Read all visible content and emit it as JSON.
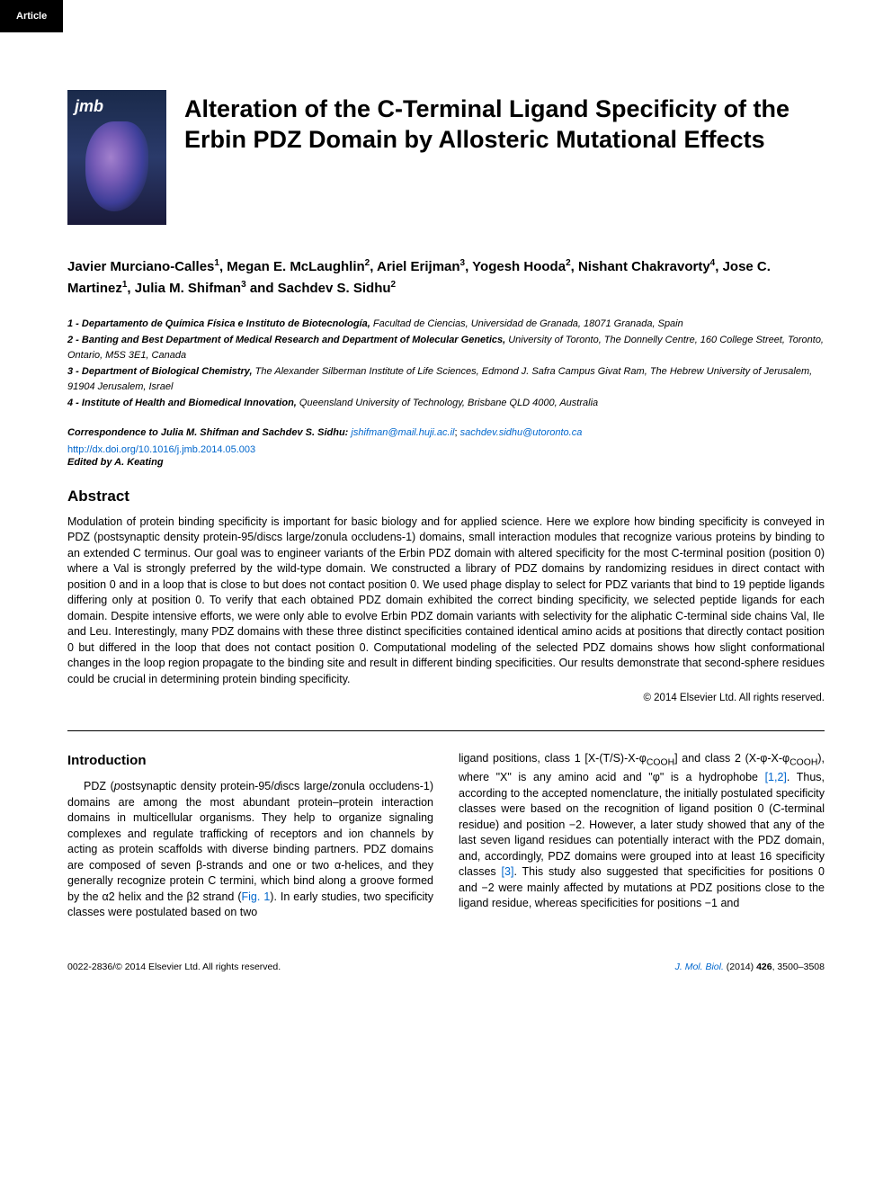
{
  "badge": "Article",
  "journal_thumb": {
    "label": "jmb"
  },
  "title": "Alteration of the C-Terminal Ligand Specificity of the Erbin PDZ Domain by Allosteric Mutational Effects",
  "authors_html": "Javier Murciano-Calles<sup>1</sup>, Megan E. McLaughlin<sup>2</sup>, Ariel Erijman<sup>3</sup>, Yogesh Hooda<sup>2</sup>, Nishant Chakravorty<sup>4</sup>, Jose C. Martinez<sup>1</sup>, Julia M. Shifman<sup>3</sup> and Sachdev S. Sidhu<sup>2</sup>",
  "affiliations": [
    {
      "prefix": "1 - Departamento de Química Física e Instituto de Biotecnología,",
      "rest": " Facultad de Ciencias, Universidad de Granada, 18071 Granada, Spain"
    },
    {
      "prefix": "2 - Banting and Best Department of Medical Research and Department of Molecular Genetics,",
      "rest": " University of Toronto, The Donnelly Centre, 160 College Street, Toronto, Ontario, M5S 3E1, Canada"
    },
    {
      "prefix": "3 - Department of Biological Chemistry,",
      "rest": " The Alexander Silberman Institute of Life Sciences, Edmond J. Safra Campus Givat Ram, The Hebrew University of Jerusalem, 91904 Jerusalem, Israel"
    },
    {
      "prefix": "4 - Institute of Health and Biomedical Innovation,",
      "rest": " Queensland University of Technology, Brisbane QLD 4000, Australia"
    }
  ],
  "correspondence": {
    "label": "Correspondence to Julia M. Shifman and Sachdev S. Sidhu:",
    "emails": [
      "jshifman@mail.huji.ac.il",
      "sachdev.sidhu@utoronto.ca"
    ]
  },
  "doi": "http://dx.doi.org/10.1016/j.jmb.2014.05.003",
  "edited_by": "Edited by A. Keating",
  "abstract": {
    "heading": "Abstract",
    "text": "Modulation of protein binding specificity is important for basic biology and for applied science. Here we explore how binding specificity is conveyed in PDZ (postsynaptic density protein-95/discs large/zonula occludens-1) domains, small interaction modules that recognize various proteins by binding to an extended C terminus. Our goal was to engineer variants of the Erbin PDZ domain with altered specificity for the most C-terminal position (position 0) where a Val is strongly preferred by the wild-type domain. We constructed a library of PDZ domains by randomizing residues in direct contact with position 0 and in a loop that is close to but does not contact position 0. We used phage display to select for PDZ variants that bind to 19 peptide ligands differing only at position 0. To verify that each obtained PDZ domain exhibited the correct binding specificity, we selected peptide ligands for each domain. Despite intensive efforts, we were only able to evolve Erbin PDZ domain variants with selectivity for the aliphatic C-terminal side chains Val, Ile and Leu. Interestingly, many PDZ domains with these three distinct specificities contained identical amino acids at positions that directly contact position 0 but differed in the loop that does not contact position 0. Computational modeling of the selected PDZ domains shows how slight conformational changes in the loop region propagate to the binding site and result in different binding specificities. Our results demonstrate that second-sphere residues could be crucial in determining protein binding specificity.",
    "copyright": "© 2014 Elsevier Ltd. All rights reserved."
  },
  "introduction": {
    "heading": "Introduction",
    "col1": "PDZ (<i>p</i>ostsynaptic density protein-95/<i>d</i>iscs large/<i>z</i>onula occludens-1) domains are among the most abundant protein–protein interaction domains in multicellular organisms. They help to organize signaling complexes and regulate trafficking of receptors and ion channels by acting as protein scaffolds with diverse binding partners. PDZ domains are composed of seven β-strands and one or two α-helices, and they generally recognize protein C termini, which bind along a groove formed by the α2 helix and the β2 strand (<span class=\"ref-link\">Fig. 1</span>). In early studies, two specificity classes were postulated based on two",
    "col2": "ligand positions, class 1 [X-(T/S)-X-φ<sub>COOH</sub>] and class 2 (X-φ-X-φ<sub>COOH</sub>), where \"X\" is any amino acid and \"φ\" is a hydrophobe <span class=\"ref-link\">[1,2]</span>. Thus, according to the accepted nomenclature, the initially postulated specificity classes were based on the recognition of ligand position 0 (C-terminal residue) and position −2. However, a later study showed that any of the last seven ligand residues can potentially interact with the PDZ domain, and, accordingly, PDZ domains were grouped into at least 16 specificity classes <span class=\"ref-link\">[3]</span>. This study also suggested that specificities for positions 0 and −2 were mainly affected by mutations at PDZ positions close to the ligand residue, whereas specificities for positions −1 and"
  },
  "footer": {
    "left": "0022-2836/© 2014 Elsevier Ltd. All rights reserved.",
    "right_journal": "J. Mol. Biol.",
    "right_rest": " (2014) ",
    "right_vol": "426",
    "right_pages": ", 3500–3508"
  },
  "colors": {
    "link": "#0066cc",
    "badge_bg": "#000000",
    "badge_fg": "#ffffff",
    "text": "#000000"
  }
}
